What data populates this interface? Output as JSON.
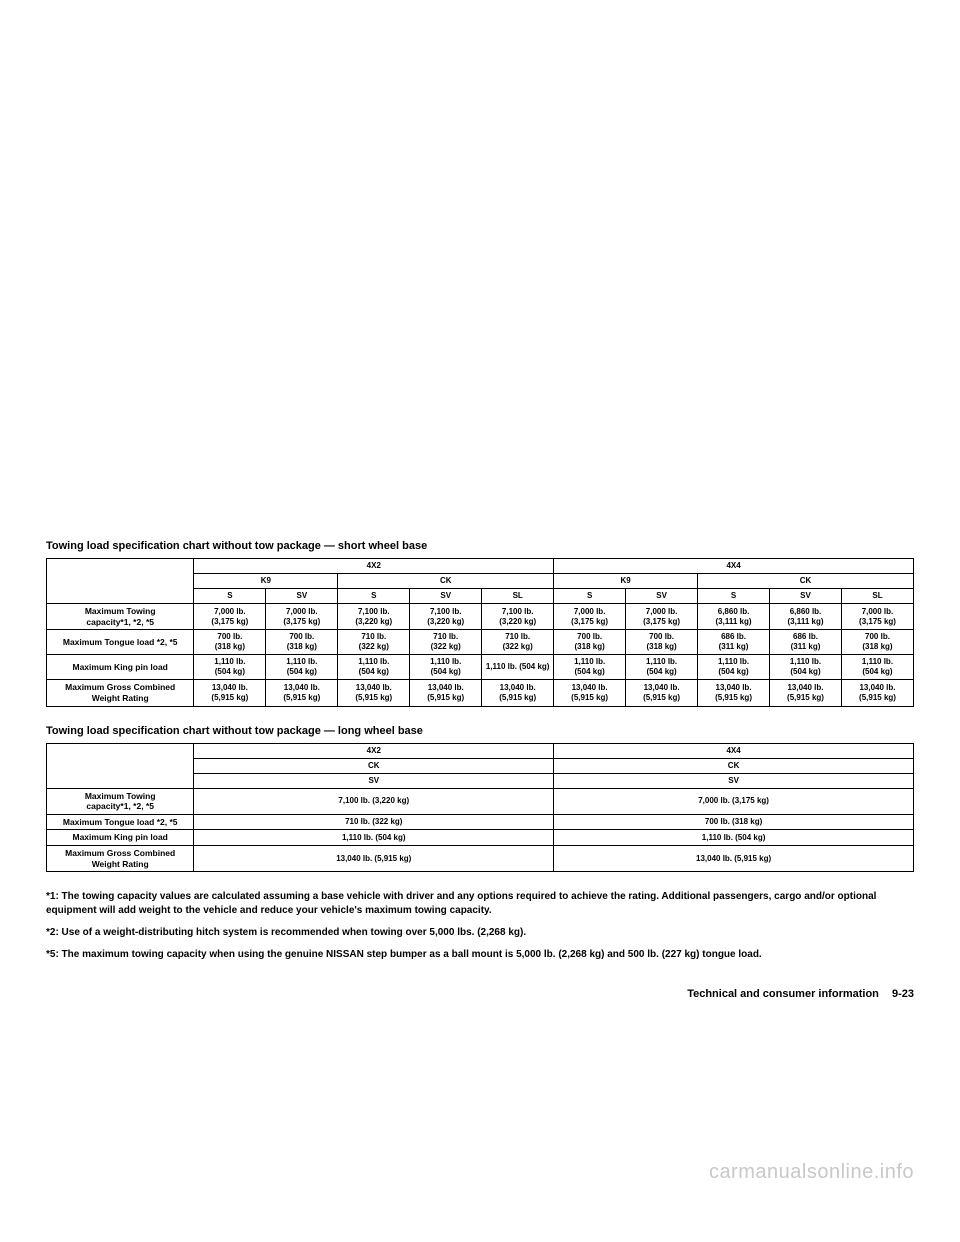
{
  "table1": {
    "caption": "Towing load specification chart without tow package — short wheel base",
    "drive_headers": [
      "4X2",
      "4X4"
    ],
    "eng_headers": [
      {
        "label": "K9",
        "span": 2
      },
      {
        "label": "CK",
        "span": 3
      },
      {
        "label": "K9",
        "span": 2
      },
      {
        "label": "CK",
        "span": 3
      }
    ],
    "trim_headers": [
      "S",
      "SV",
      "S",
      "SV",
      "SL",
      "S",
      "SV",
      "S",
      "SV",
      "SL"
    ],
    "rows": [
      {
        "label": "Maximum Towing\ncapacity*1, *2, *5",
        "cells": [
          "7,000 lb.\n(3,175 kg)",
          "7,000 lb.\n(3,175 kg)",
          "7,100 lb.\n(3,220 kg)",
          "7,100 lb.\n(3,220 kg)",
          "7,100 lb.\n(3,220 kg)",
          "7,000 lb.\n(3,175 kg)",
          "7,000 lb.\n(3,175 kg)",
          "6,860 lb.\n(3,111 kg)",
          "6,860 lb.\n(3,111 kg)",
          "7,000 lb.\n(3,175 kg)"
        ]
      },
      {
        "label": "Maximum Tongue load *2, *5",
        "cells": [
          "700 lb.\n(318 kg)",
          "700 lb.\n(318 kg)",
          "710 lb.\n(322 kg)",
          "710 lb.\n(322 kg)",
          "710 lb.\n(322 kg)",
          "700 lb.\n(318 kg)",
          "700 lb.\n(318 kg)",
          "686 lb.\n(311 kg)",
          "686 lb.\n(311 kg)",
          "700 lb.\n(318 kg)"
        ]
      },
      {
        "label": "Maximum King pin load",
        "cells": [
          "1,110 lb.\n(504 kg)",
          "1,110 lb.\n(504 kg)",
          "1,110 lb.\n(504 kg)",
          "1,110 lb.\n(504 kg)",
          "1,110 lb. (504 kg)",
          "1,110 lb.\n(504 kg)",
          "1,110 lb.\n(504 kg)",
          "1,110 lb.\n(504 kg)",
          "1,110 lb.\n(504 kg)",
          "1,110 lb.\n(504 kg)"
        ]
      },
      {
        "label": "Maximum Gross Combined Weight Rating",
        "cells": [
          "13,040 lb.\n(5,915 kg)",
          "13,040 lb.\n(5,915 kg)",
          "13,040 lb.\n(5,915 kg)",
          "13,040 lb.\n(5,915 kg)",
          "13,040 lb.\n(5,915 kg)",
          "13,040 lb.\n(5,915 kg)",
          "13,040 lb.\n(5,915 kg)",
          "13,040 lb.\n(5,915 kg)",
          "13,040 lb.\n(5,915 kg)",
          "13,040 lb.\n(5,915 kg)"
        ]
      }
    ]
  },
  "table2": {
    "caption": "Towing load specification chart without tow package — long wheel base",
    "drive_headers": [
      "4X2",
      "4X4"
    ],
    "eng_headers": [
      "CK",
      "CK"
    ],
    "trim_headers": [
      "SV",
      "SV"
    ],
    "rows": [
      {
        "label": "Maximum Towing\ncapacity*1, *2, *5",
        "cells": [
          "7,100 lb. (3,220 kg)",
          "7,000 lb. (3,175 kg)"
        ]
      },
      {
        "label": "Maximum Tongue load *2, *5",
        "cells": [
          "710 lb. (322 kg)",
          "700 lb. (318 kg)"
        ]
      },
      {
        "label": "Maximum King pin load",
        "cells": [
          "1,110 lb. (504 kg)",
          "1,110 lb. (504 kg)"
        ]
      },
      {
        "label": "Maximum Gross Combined\nWeight Rating",
        "cells": [
          "13,040 lb. (5,915 kg)",
          "13,040 lb. (5,915 kg)"
        ]
      }
    ]
  },
  "footnotes": [
    "*1: The towing capacity values are calculated assuming a base vehicle with driver and any options required to achieve the rating. Additional passengers, cargo and/or optional equipment will add weight to the vehicle and reduce your vehicle's maximum towing capacity.",
    "*2: Use of a weight-distributing hitch system is recommended when towing over 5,000 lbs. (2,268 kg).",
    "*5: The maximum towing capacity when using the genuine NISSAN step bumper as a ball mount is 5,000 lb. (2,268 kg) and 500 lb. (227 kg) tongue load."
  ],
  "footer": {
    "section": "Technical and consumer information",
    "page": "9-23"
  },
  "watermark": "carmanualsonline.info"
}
